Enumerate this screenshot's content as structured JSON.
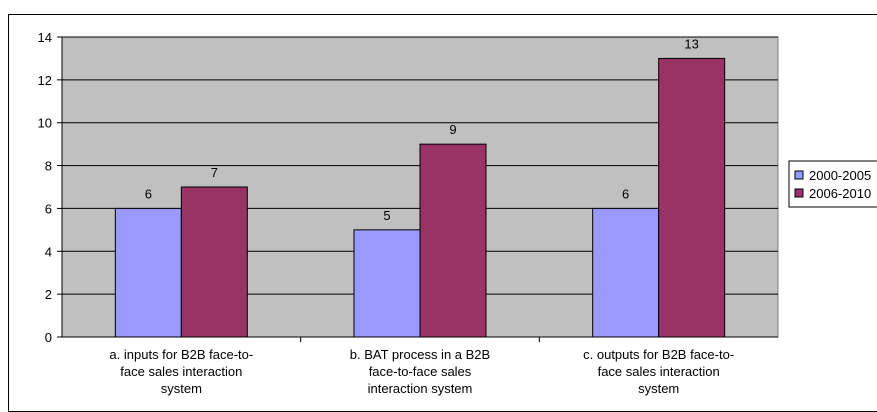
{
  "chart_data": {
    "type": "bar",
    "categories": [
      [
        "a.  inputs for B2B face-to-",
        "face sales interaction",
        "system"
      ],
      [
        "b. BAT process in a B2B",
        "face-to-face sales",
        "interaction system"
      ],
      [
        "c. outputs for B2B face-to-",
        "face sales interaction",
        "system"
      ]
    ],
    "series": [
      {
        "name": "2000-2005",
        "values": [
          6,
          5,
          6
        ],
        "color": "#9999ff"
      },
      {
        "name": "2006-2010",
        "values": [
          7,
          9,
          13
        ],
        "color": "#993366"
      }
    ],
    "y_ticks": [
      "0",
      "2",
      "4",
      "6",
      "8",
      "10",
      "12",
      "14"
    ],
    "ylim": [
      0,
      14
    ],
    "y_step": 2,
    "grid": true,
    "plot_background": "#c0c0c0",
    "legend_position": "right"
  }
}
